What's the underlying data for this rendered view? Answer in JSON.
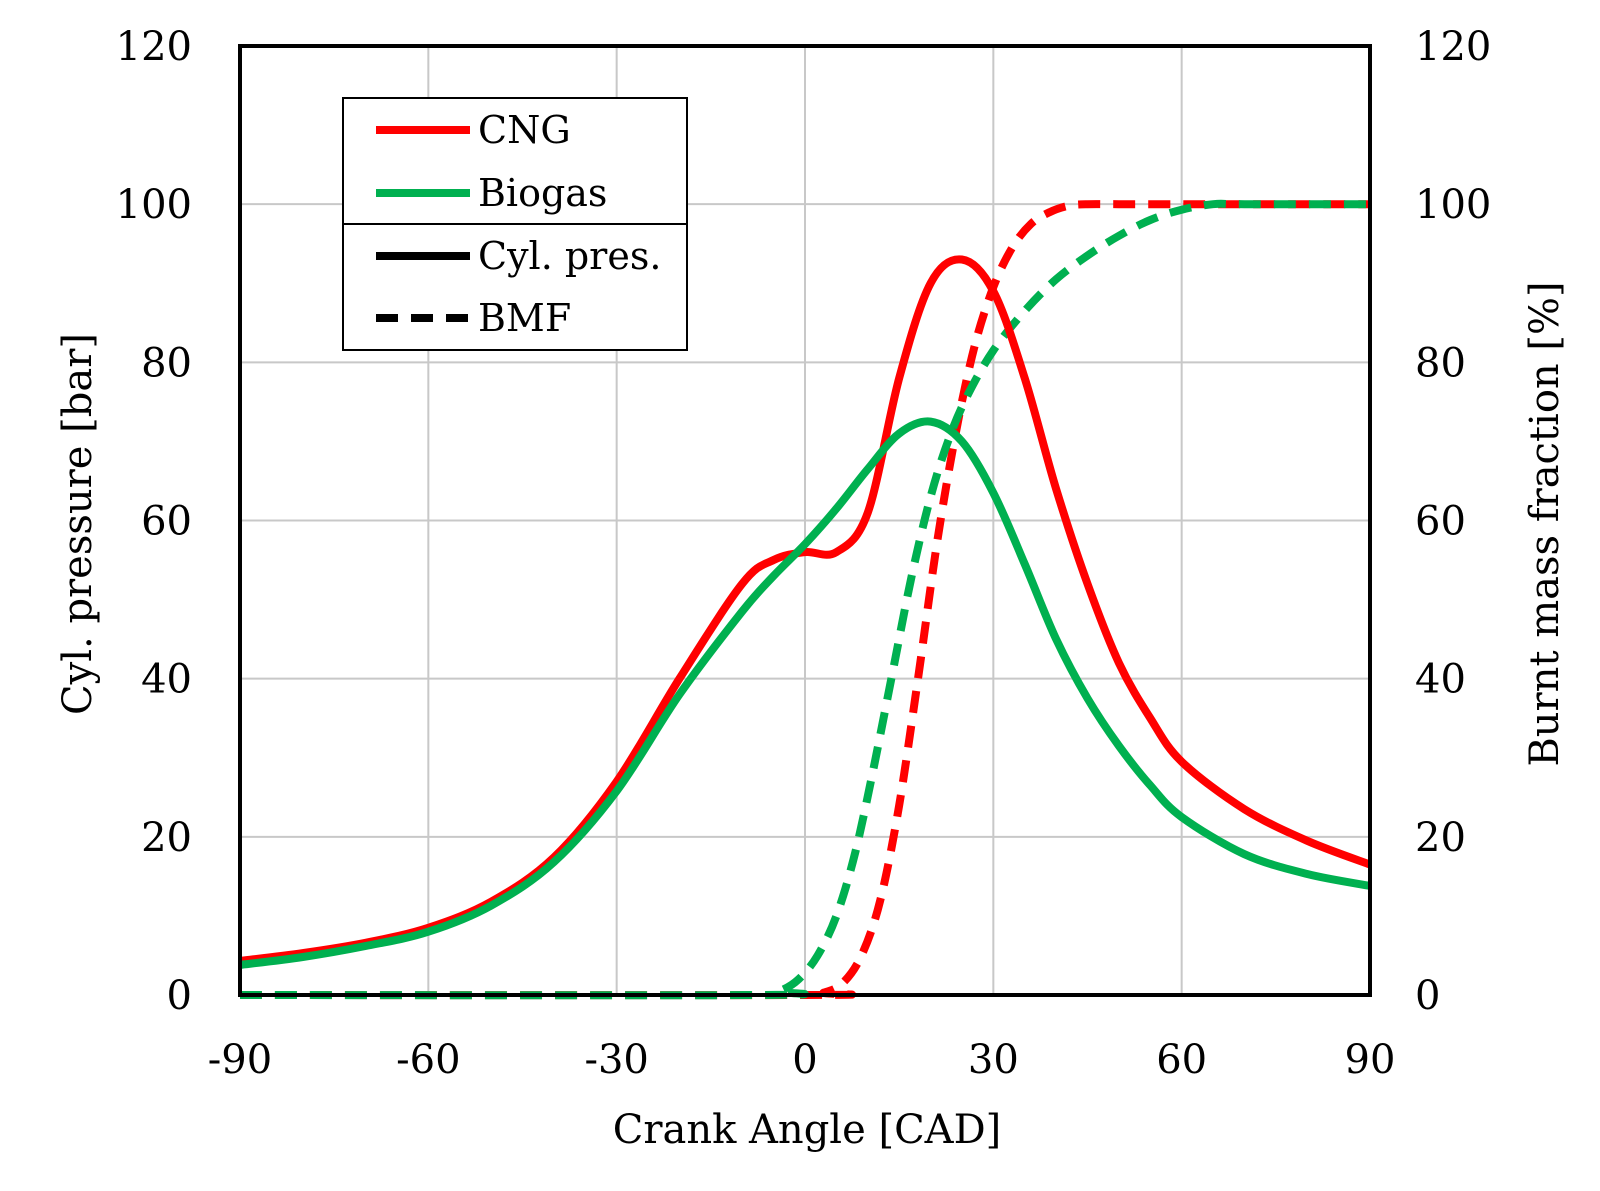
{
  "chart_data": {
    "type": "line",
    "xlabel": "Crank Angle [CAD]",
    "ylabel": "Cyl. pressure [bar]",
    "y2label": "Burnt mass fraction [%]",
    "xlim": [
      -90,
      90
    ],
    "ylim": [
      0,
      120
    ],
    "y2lim": [
      0,
      120
    ],
    "x_ticks": [
      "-90",
      "-60",
      "-30",
      "0",
      "30",
      "60",
      "90"
    ],
    "y_ticks": [
      "0",
      "20",
      "40",
      "60",
      "80",
      "100",
      "120"
    ],
    "y2_ticks": [
      "0",
      "20",
      "40",
      "60",
      "80",
      "100",
      "120"
    ],
    "grid": true,
    "legend_position": "top-left",
    "legend": {
      "fuels": [
        {
          "label": "CNG",
          "color": "#ff0000"
        },
        {
          "label": "Biogas",
          "color": "#00b050"
        }
      ],
      "styles": [
        {
          "label": "Cyl. pres.",
          "dash": "solid"
        },
        {
          "label": "BMF",
          "dash": "dashed"
        }
      ]
    },
    "series": [
      {
        "name": "CNG",
        "quantity": "Cyl. pres.",
        "color": "#ff0000",
        "dash": "solid",
        "axis": "left",
        "x": [
          -90,
          -80,
          -70,
          -60,
          -50,
          -40,
          -30,
          -20,
          -10,
          -5,
          0,
          5,
          10,
          15,
          20,
          25,
          30,
          35,
          40,
          45,
          50,
          55,
          60,
          70,
          80,
          90
        ],
        "y": [
          4.3,
          5.3,
          6.6,
          8.5,
          11.8,
          17.4,
          27,
          40,
          52,
          55,
          56,
          56,
          61,
          78,
          90,
          93,
          89,
          78,
          64,
          52,
          42,
          35,
          29.5,
          23.5,
          19.5,
          16.5
        ]
      },
      {
        "name": "Biogas",
        "quantity": "Cyl. pres.",
        "color": "#00b050",
        "dash": "solid",
        "axis": "left",
        "x": [
          -90,
          -80,
          -70,
          -60,
          -50,
          -40,
          -30,
          -20,
          -10,
          -5,
          0,
          5,
          10,
          15,
          20,
          25,
          30,
          35,
          40,
          45,
          50,
          55,
          60,
          70,
          80,
          90
        ],
        "y": [
          3.8,
          4.8,
          6.2,
          8.0,
          11.3,
          16.8,
          25.8,
          38,
          48.5,
          53,
          57,
          61.5,
          66.5,
          71,
          72.5,
          70,
          63.5,
          54.5,
          45,
          37.5,
          31.5,
          26.5,
          22.5,
          17.8,
          15.3,
          13.8
        ]
      },
      {
        "name": "CNG",
        "quantity": "BMF",
        "color": "#ff0000",
        "dash": "dashed",
        "axis": "right",
        "x": [
          -90,
          0,
          3,
          6,
          9,
          12,
          15,
          18,
          21,
          24,
          27,
          30,
          33,
          36,
          39,
          42,
          45,
          50,
          60,
          70,
          90
        ],
        "y": [
          0,
          0,
          0.3,
          1.5,
          5,
          12,
          24,
          40,
          57,
          71,
          82,
          89.5,
          94.5,
          97.5,
          99,
          99.8,
          100,
          100,
          100,
          100,
          100
        ]
      },
      {
        "name": "Biogas",
        "quantity": "BMF",
        "color": "#00b050",
        "dash": "dashed",
        "axis": "right",
        "x": [
          -90,
          -7,
          -4,
          -1,
          2,
          5,
          8,
          11,
          14,
          17,
          20,
          23,
          26,
          30,
          35,
          40,
          45,
          50,
          55,
          60,
          65,
          70,
          90
        ],
        "y": [
          0,
          0,
          0.5,
          2,
          5,
          10,
          18,
          29,
          41,
          53,
          63,
          70.5,
          76,
          81.5,
          86.5,
          90.5,
          93.5,
          96,
          98,
          99.3,
          100,
          100,
          100
        ]
      }
    ]
  }
}
